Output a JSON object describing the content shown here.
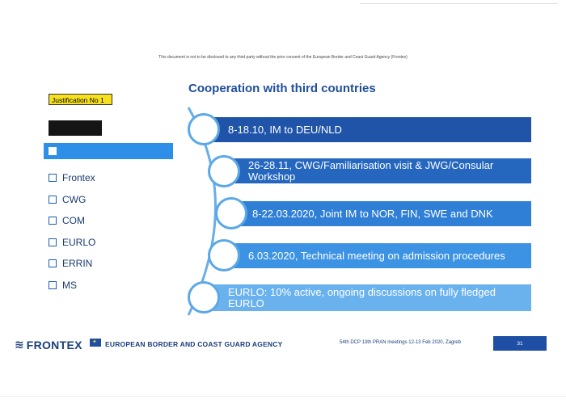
{
  "notice": "This document is not to be disclosed to any third party without the prior consent of the European Border and Coast Guard Agency (Frontex)",
  "title": "Cooperation with third countries",
  "justification": "Justification No 1",
  "legend": [
    {
      "label": "Frontex"
    },
    {
      "label": "CWG"
    },
    {
      "label": "COM"
    },
    {
      "label": "EURLO"
    },
    {
      "label": "ERRIN"
    },
    {
      "label": "MS"
    }
  ],
  "timeline": [
    {
      "text": "8-18.10, IM to DEU/NLD",
      "color": "#1f54a8"
    },
    {
      "text": "26-28.11, CWG/Familiarisation visit & JWG/Consular Workshop",
      "color": "#2566bf"
    },
    {
      "text": "8-22.03.2020, Joint IM to NOR, FIN, SWE and DNK",
      "color": "#2f7fd6"
    },
    {
      "text": "6.03.2020, Technical meeting on admission procedures",
      "color": "#3c93e3"
    },
    {
      "text": "EURLO: 10% active, ongoing discussions on fully fledged EURLO",
      "color": "#6ab2ee"
    }
  ],
  "footer": {
    "brand": "FRONTEX",
    "agency": "EUROPEAN BORDER AND COAST GUARD AGENCY",
    "meeting": "54th DCP 13th PRAN meetings 12-13 Feb 2020, Zagreb",
    "page": "31"
  }
}
